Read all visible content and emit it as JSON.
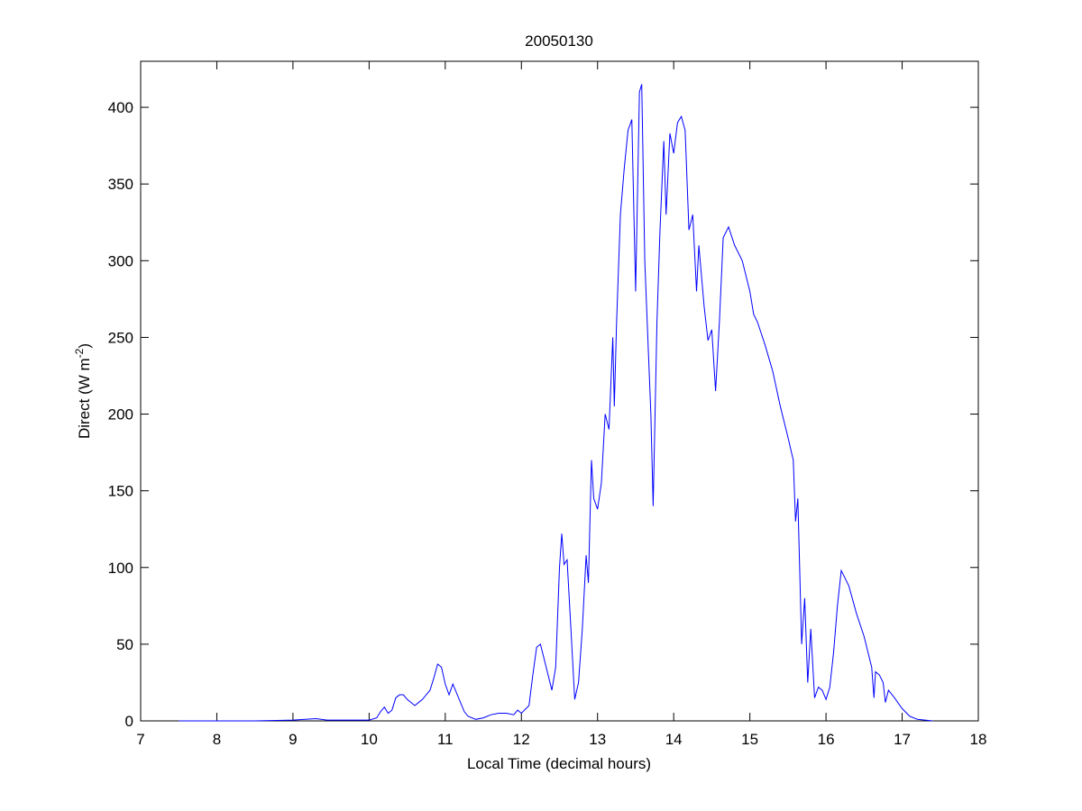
{
  "chart_data": {
    "type": "line",
    "title": "20050130",
    "xlabel": "Local Time (decimal hours)",
    "ylabel_parts": [
      "Direct (W m",
      "-2",
      ")"
    ],
    "xlim": [
      7,
      18
    ],
    "xticks": [
      7,
      8,
      9,
      10,
      11,
      12,
      13,
      14,
      15,
      16,
      17,
      18
    ],
    "ylim": [
      0,
      430
    ],
    "yticks": [
      0,
      50,
      100,
      150,
      200,
      250,
      300,
      350,
      400
    ],
    "grid": false,
    "x": [
      7.5,
      8,
      8.5,
      9,
      9.3,
      9.45,
      10,
      10.1,
      10.15,
      10.2,
      10.25,
      10.3,
      10.35,
      10.4,
      10.45,
      10.5,
      10.6,
      10.65,
      10.7,
      10.75,
      10.8,
      10.85,
      10.9,
      10.95,
      11.0,
      11.05,
      11.1,
      11.15,
      11.2,
      11.25,
      11.3,
      11.4,
      11.5,
      11.6,
      11.7,
      11.8,
      11.9,
      11.95,
      12.0,
      12.1,
      12.15,
      12.2,
      12.25,
      12.3,
      12.35,
      12.4,
      12.45,
      12.5,
      12.53,
      12.56,
      12.6,
      12.65,
      12.7,
      12.75,
      12.8,
      12.85,
      12.88,
      12.92,
      12.95,
      13.0,
      13.05,
      13.1,
      13.15,
      13.2,
      13.22,
      13.25,
      13.3,
      13.35,
      13.4,
      13.45,
      13.5,
      13.55,
      13.58,
      13.62,
      13.7,
      13.73,
      13.78,
      13.82,
      13.87,
      13.9,
      13.95,
      14.0,
      14.05,
      14.1,
      14.15,
      14.2,
      14.25,
      14.3,
      14.33,
      14.4,
      14.45,
      14.5,
      14.55,
      14.6,
      14.65,
      14.72,
      14.8,
      14.9,
      15.0,
      15.05,
      15.1,
      15.2,
      15.3,
      15.4,
      15.5,
      15.57,
      15.6,
      15.63,
      15.68,
      15.72,
      15.76,
      15.8,
      15.85,
      15.9,
      15.95,
      16.0,
      16.05,
      16.1,
      16.15,
      16.2,
      16.3,
      16.4,
      16.5,
      16.55,
      16.6,
      16.63,
      16.65,
      16.7,
      16.75,
      16.78,
      16.82,
      16.9,
      17.0,
      17.1,
      17.2,
      17.4
    ],
    "series": [
      {
        "color": "#0000ff",
        "values": [
          0,
          0,
          0,
          0.5,
          1.5,
          0.5,
          0.5,
          2,
          6,
          9,
          5,
          7,
          15,
          17,
          17,
          14,
          10,
          12,
          14,
          17,
          20,
          28,
          37,
          35,
          24,
          17,
          24,
          18,
          12,
          6,
          3,
          1,
          2,
          4,
          5,
          5,
          4,
          7,
          5,
          10,
          30,
          48,
          50,
          40,
          30,
          20,
          35,
          100,
          122,
          102,
          105,
          60,
          14,
          25,
          60,
          108,
          90,
          170,
          145,
          138,
          155,
          200,
          190,
          250,
          205,
          260,
          330,
          360,
          385,
          392,
          280,
          410,
          415,
          300,
          200,
          140,
          260,
          320,
          378,
          330,
          383,
          370,
          390,
          394,
          385,
          320,
          330,
          280,
          310,
          270,
          248,
          255,
          215,
          260,
          315,
          322,
          310,
          300,
          280,
          265,
          260,
          245,
          228,
          205,
          185,
          170,
          130,
          145,
          50,
          80,
          25,
          60,
          15,
          22,
          20,
          14,
          22,
          45,
          75,
          98,
          88,
          70,
          55,
          45,
          35,
          15,
          32,
          30,
          25,
          12,
          20,
          15,
          8,
          3,
          1,
          0
        ]
      }
    ]
  }
}
